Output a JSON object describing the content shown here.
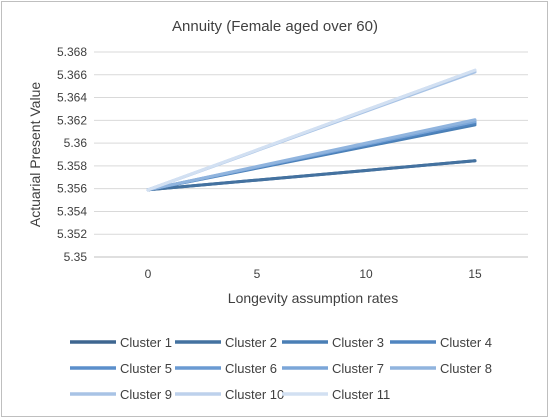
{
  "chart_data": {
    "type": "line",
    "title": "Annuity (Female aged over 60)",
    "xlabel": "Longevity assumption rates",
    "ylabel": "Actuarial Present Value",
    "x": [
      0,
      5,
      10,
      15
    ],
    "ylim": [
      5.35,
      5.368
    ],
    "yticks": [
      5.35,
      5.352,
      5.354,
      5.356,
      5.358,
      5.36,
      5.362,
      5.364,
      5.366,
      5.368
    ],
    "ytick_labels": [
      "5.35",
      "5.352",
      "5.354",
      "5.356",
      "5.358",
      "5.36",
      "5.362",
      "5.364",
      "5.366",
      "5.368"
    ],
    "xtick_labels": [
      "0",
      "5",
      "10",
      "15"
    ],
    "grid": true,
    "legend_position": "bottom",
    "series": [
      {
        "name": "Cluster 1",
        "color": "#3e6690",
        "values": [
          5.3559,
          5.35675,
          5.3576,
          5.35845
        ]
      },
      {
        "name": "Cluster 2",
        "color": "#4472a0",
        "values": [
          5.3559,
          5.35675,
          5.3576,
          5.35845
        ]
      },
      {
        "name": "Cluster 3",
        "color": "#4a7fb5",
        "values": [
          5.3559,
          5.3578,
          5.3597,
          5.3616
        ]
      },
      {
        "name": "Cluster 4",
        "color": "#5085c0",
        "values": [
          5.3559,
          5.35785,
          5.3598,
          5.36175
        ]
      },
      {
        "name": "Cluster 5",
        "color": "#5b8fcb",
        "values": [
          5.3559,
          5.3579,
          5.3599,
          5.3619
        ]
      },
      {
        "name": "Cluster 6",
        "color": "#6a9ad2",
        "values": [
          5.3559,
          5.3579,
          5.3599,
          5.3619
        ]
      },
      {
        "name": "Cluster 7",
        "color": "#7ba6d8",
        "values": [
          5.3559,
          5.3579,
          5.3599,
          5.3619
        ]
      },
      {
        "name": "Cluster 8",
        "color": "#90b4de",
        "values": [
          5.3559,
          5.35795,
          5.36,
          5.36205
        ]
      },
      {
        "name": "Cluster 9",
        "color": "#a8c3e5",
        "values": [
          5.3559,
          5.35935,
          5.3628,
          5.36625
        ]
      },
      {
        "name": "Cluster 10",
        "color": "#bdd1ec",
        "values": [
          5.3559,
          5.3594,
          5.3629,
          5.3664
        ]
      },
      {
        "name": "Cluster 11",
        "color": "#d2e0f2",
        "values": [
          5.3559,
          5.3594,
          5.3629,
          5.3664
        ]
      }
    ]
  }
}
